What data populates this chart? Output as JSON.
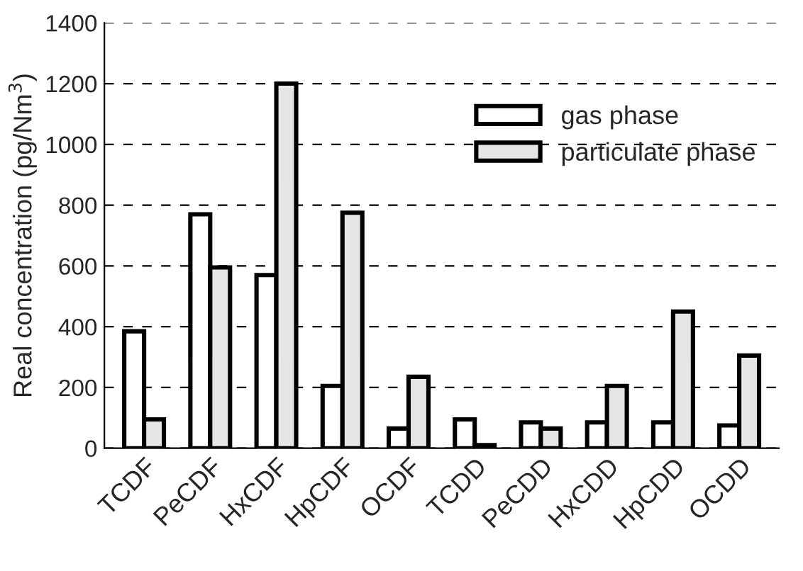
{
  "chart_data": {
    "type": "bar",
    "ylabel": "Real concentration (pg/Nm$^{3}$)",
    "categories": [
      "TCDF",
      "PeCDF",
      "HxCDF",
      "HpCDF",
      "OCDF",
      "TCDD",
      "PeCDD",
      "HxCDD",
      "HpCDD",
      "OCDD"
    ],
    "series": [
      {
        "name": "gas phase",
        "color": "#ffffff",
        "values": [
          385,
          770,
          570,
          205,
          65,
          95,
          85,
          85,
          85,
          75
        ]
      },
      {
        "name": "particulate phase",
        "color": "#e6e6e6",
        "values": [
          95,
          595,
          1200,
          775,
          235,
          10,
          65,
          205,
          450,
          305
        ]
      }
    ],
    "ylim": [
      0,
      1400
    ],
    "yticks": [
      0,
      200,
      400,
      600,
      800,
      1000,
      1200,
      1400
    ],
    "grid": "y",
    "legend": "top right"
  }
}
